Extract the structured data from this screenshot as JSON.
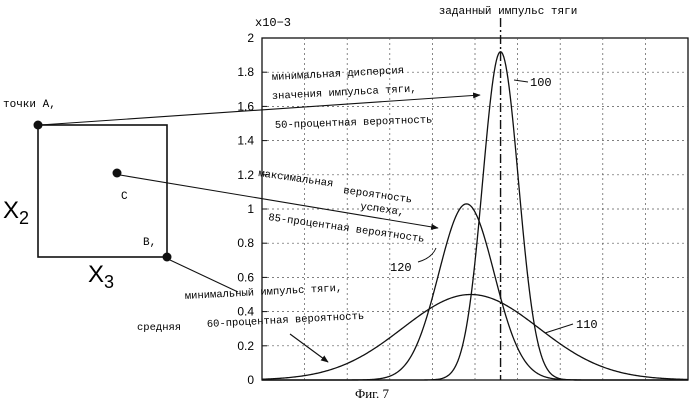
{
  "figure": {
    "caption": "Фиг. 7",
    "top_label": "заданный импульс тяги",
    "y_scale_label": "x10−3"
  },
  "diagram": {
    "point_a_label": "точки A,",
    "point_b_label": "B,",
    "point_c_label": "C",
    "axis_x2": "X",
    "axis_x2_sub": "2",
    "axis_x3": "X",
    "axis_x3_sub": "3"
  },
  "annotations": {
    "a_line1": "минимальная дисперсия",
    "a_line2": "значения импульса тяги,",
    "a_line3": "50-процентная вероятность",
    "c_line1": "максимальная",
    "c_line2": "вероятность",
    "c_line3": "успеха,",
    "c_line4": "85-процентная вероятность",
    "b_line1": "минимальный импульс тяги,",
    "b_line2": "60-процентная вероятность",
    "b_prefix": "средняя",
    "label_100": "100",
    "label_110": "110",
    "label_120": "120"
  },
  "colors": {
    "ink": "#111111",
    "grid": "#555555",
    "paper": "#ffffff"
  },
  "chart_data": {
    "type": "line",
    "ylim": [
      0,
      2
    ],
    "xlim": [
      0,
      10
    ],
    "y_ticks": [
      "0",
      "0.2",
      "0.4",
      "0.6",
      "0.8",
      "1",
      "1.2",
      "1.4",
      "1.6",
      "1.8",
      "2"
    ],
    "grid": true,
    "target_x": 5.6,
    "series": [
      {
        "id": "100",
        "mean": 5.6,
        "sd": 0.42,
        "peak": 1.92
      },
      {
        "id": "120",
        "mean": 4.8,
        "sd": 0.65,
        "peak": 1.03
      },
      {
        "id": "110",
        "mean": 4.9,
        "sd": 1.6,
        "peak": 0.5
      }
    ]
  }
}
